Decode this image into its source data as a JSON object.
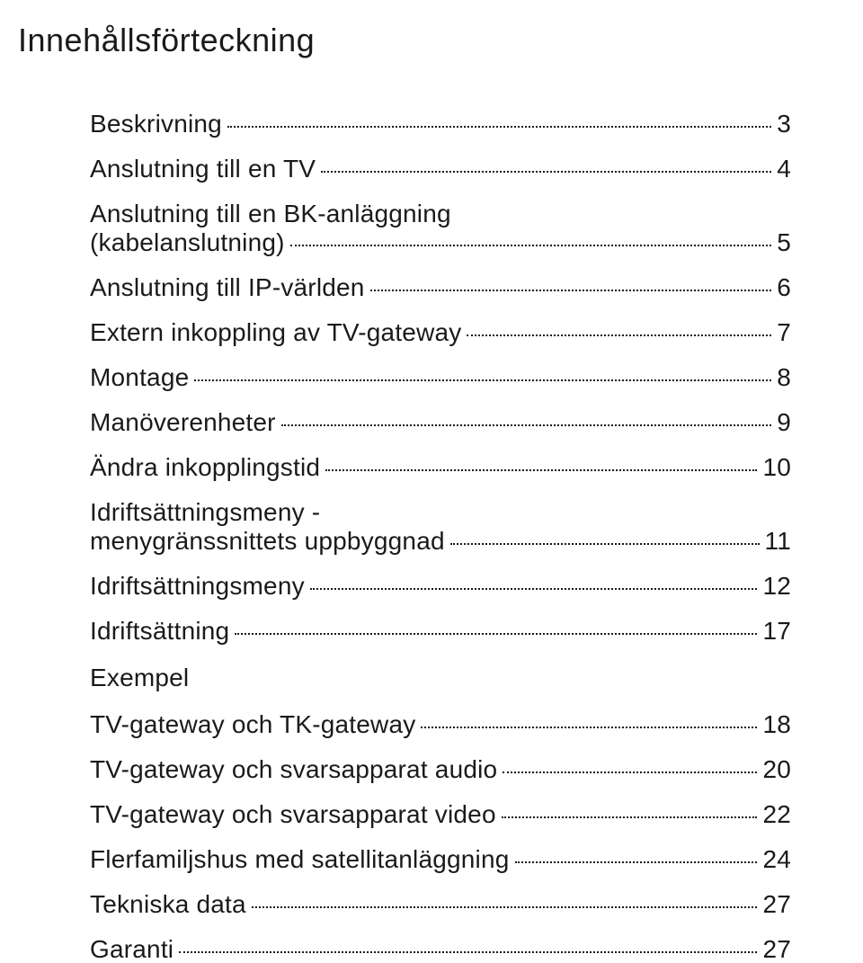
{
  "title": "Innehållsförteckning",
  "toc": {
    "items": [
      {
        "label": "Beskrivning",
        "page": "3"
      },
      {
        "label": "Anslutning till en TV",
        "page": "4"
      },
      {
        "label": "Anslutning till en BK-anläggning",
        "label2": "(kabelanslutning)",
        "page": "5"
      },
      {
        "label": "Anslutning till IP-världen",
        "page": "6"
      },
      {
        "label": "Extern inkoppling av TV-gateway",
        "page": "7"
      },
      {
        "label": "Montage",
        "page": "8"
      },
      {
        "label": "Manöverenheter",
        "page": "9"
      },
      {
        "label": "Ändra inkopplingstid",
        "page": "10"
      },
      {
        "label": "Idriftsättningsmeny -",
        "label2": "menygränssnittets uppbyggnad",
        "page": "11"
      },
      {
        "label": "Idriftsättningsmeny",
        "page": "12"
      },
      {
        "label": "Idriftsättning",
        "page": "17"
      },
      {
        "heading": "Exempel"
      },
      {
        "label": "TV-gateway och TK-gateway",
        "page": "18"
      },
      {
        "label": "TV-gateway och svarsapparat audio",
        "page": "20"
      },
      {
        "label": "TV-gateway och svarsapparat video",
        "page": "22"
      },
      {
        "label": "Flerfamiljshus med satellitanläggning",
        "page": "24"
      },
      {
        "label": "Tekniska data",
        "page": "27"
      },
      {
        "label": "Garanti",
        "page": "27"
      }
    ]
  }
}
